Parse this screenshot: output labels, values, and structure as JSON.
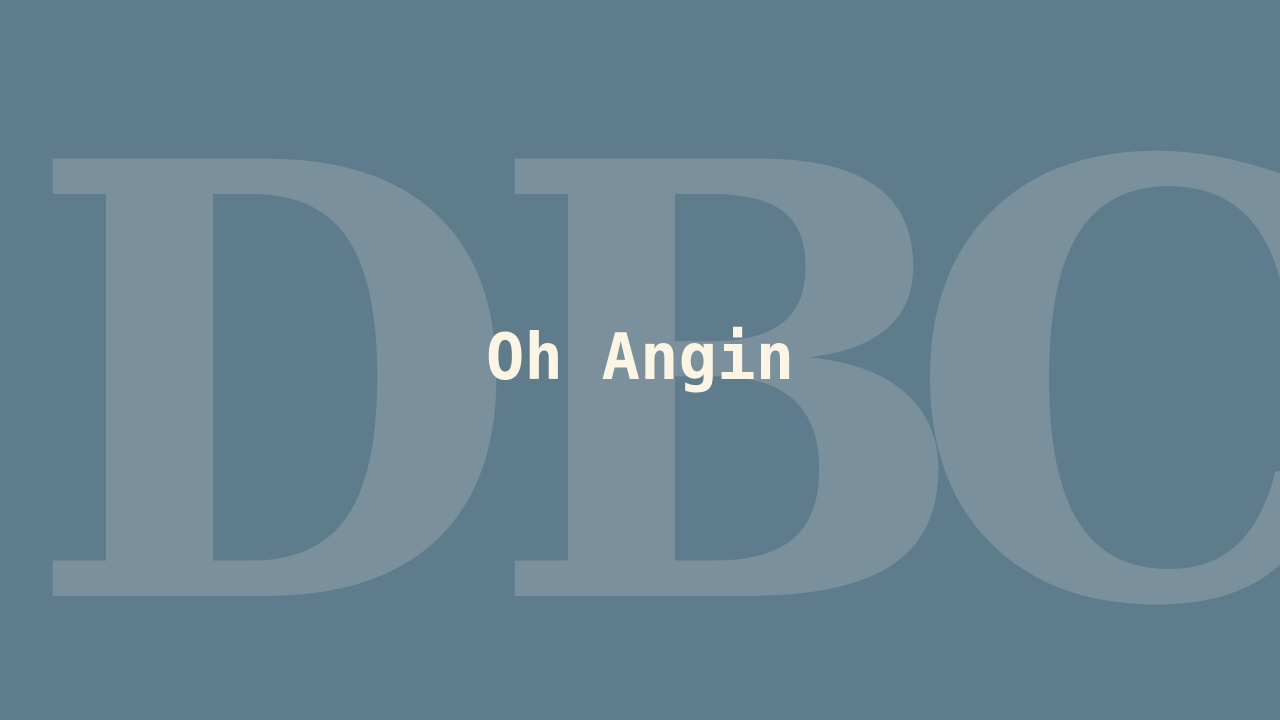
{
  "backdrop": {
    "letters": [
      "D",
      "B",
      "C"
    ]
  },
  "title": "Oh Angin",
  "colors": {
    "background": "#5f7c8c",
    "backdrop_letters": "#7a909c",
    "title": "#fcf5e4"
  }
}
